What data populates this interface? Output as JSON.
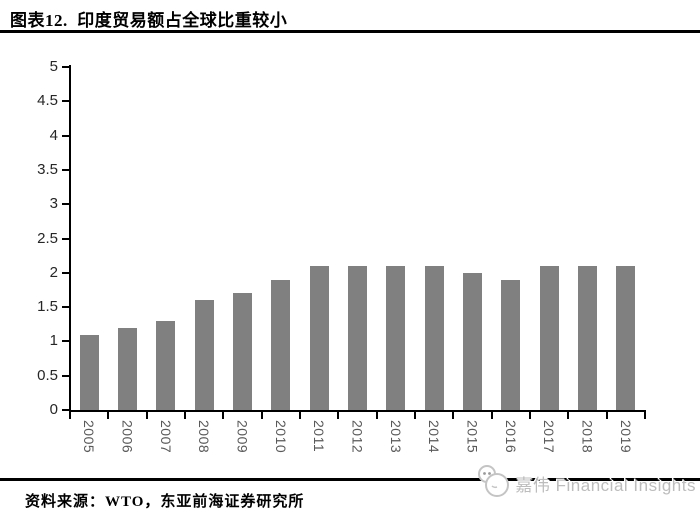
{
  "title": "图表12.  印度贸易额占全球比重较小",
  "source_note": "资料来源：WTO，东亚前海证券研究所",
  "watermark": {
    "text": "嘉伟 Financial Insights",
    "logo_icon": "mascot-face-icon"
  },
  "colors": {
    "bar": "#808080",
    "axis": "#000000",
    "rule": "#000000",
    "y_tick_label": "#262626",
    "x_tick_label": "#595959",
    "watermark": "#bdbdbd",
    "background": "#ffffff"
  },
  "chart_data": {
    "type": "bar",
    "categories": [
      "2005",
      "2006",
      "2007",
      "2008",
      "2009",
      "2010",
      "2011",
      "2012",
      "2013",
      "2014",
      "2015",
      "2016",
      "2017",
      "2018",
      "2019"
    ],
    "values": [
      1.1,
      1.2,
      1.3,
      1.6,
      1.7,
      1.9,
      2.1,
      2.1,
      2.1,
      2.1,
      2.0,
      1.9,
      2.1,
      2.1,
      2.1
    ],
    "title": "印度贸易额占全球比重较小",
    "xlabel": "",
    "ylabel": "",
    "ylim": [
      0,
      5
    ],
    "yticks": [
      0,
      0.5,
      1,
      1.5,
      2,
      2.5,
      3,
      3.5,
      4,
      4.5,
      5
    ],
    "grid": false,
    "legend": null,
    "bar_color": "#808080",
    "x_label_rotation": "vertical"
  }
}
